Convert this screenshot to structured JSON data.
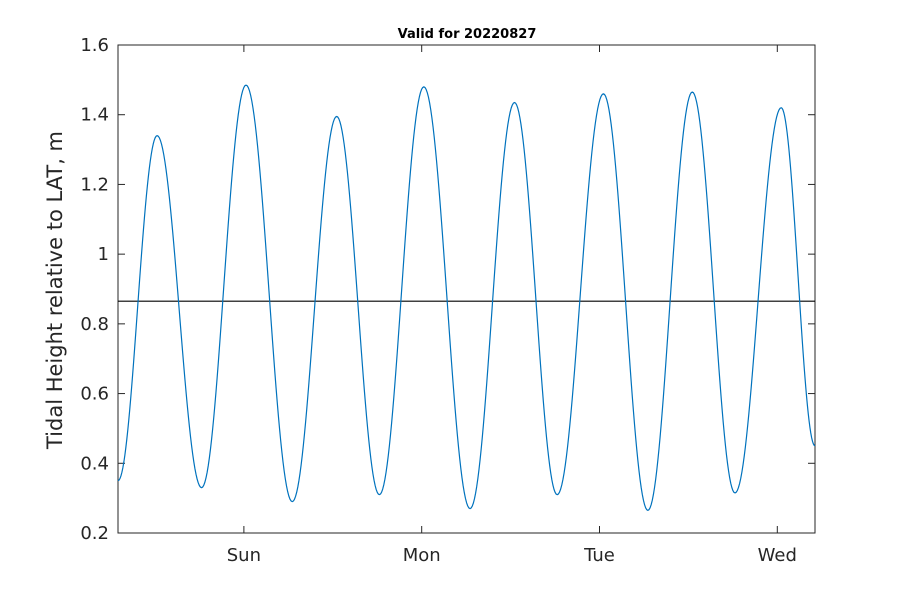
{
  "chart_data": {
    "type": "line",
    "title": "Valid for 20220827",
    "ylabel": "Tidal Height relative to LAT, m",
    "xlabel": "",
    "xlim": [
      0,
      3.92
    ],
    "ylim": [
      0.2,
      1.6
    ],
    "x_ticks": [
      {
        "value": 0.708,
        "label": "Sun"
      },
      {
        "value": 1.708,
        "label": "Mon"
      },
      {
        "value": 2.708,
        "label": "Tue"
      },
      {
        "value": 3.708,
        "label": "Wed"
      }
    ],
    "y_ticks": [
      {
        "value": 0.2,
        "label": "0.2"
      },
      {
        "value": 0.4,
        "label": "0.4"
      },
      {
        "value": 0.6,
        "label": "0.6"
      },
      {
        "value": 0.8,
        "label": "0.8"
      },
      {
        "value": 1.0,
        "label": "1"
      },
      {
        "value": 1.2,
        "label": "1.2"
      },
      {
        "value": 1.4,
        "label": "1.4"
      },
      {
        "value": 1.6,
        "label": "1.6"
      }
    ],
    "reference_line": {
      "y": 0.865,
      "color": "#000000"
    },
    "series": [
      {
        "color": "#0072BD",
        "extrema": [
          {
            "x": 0.0,
            "y": 0.35
          },
          {
            "x": 0.22,
            "y": 1.34
          },
          {
            "x": 0.47,
            "y": 0.33
          },
          {
            "x": 0.72,
            "y": 1.485
          },
          {
            "x": 0.98,
            "y": 0.29
          },
          {
            "x": 1.23,
            "y": 1.395
          },
          {
            "x": 1.47,
            "y": 0.31
          },
          {
            "x": 1.72,
            "y": 1.48
          },
          {
            "x": 1.98,
            "y": 0.27
          },
          {
            "x": 2.23,
            "y": 1.435
          },
          {
            "x": 2.47,
            "y": 0.31
          },
          {
            "x": 2.73,
            "y": 1.46
          },
          {
            "x": 2.98,
            "y": 0.265
          },
          {
            "x": 3.23,
            "y": 1.465
          },
          {
            "x": 3.47,
            "y": 0.315
          },
          {
            "x": 3.73,
            "y": 1.42
          },
          {
            "x": 3.92,
            "y": 0.45
          }
        ]
      }
    ],
    "grid": false,
    "colors": {
      "axis": "#262626",
      "series": "#0072BD",
      "reference": "#000000"
    }
  }
}
